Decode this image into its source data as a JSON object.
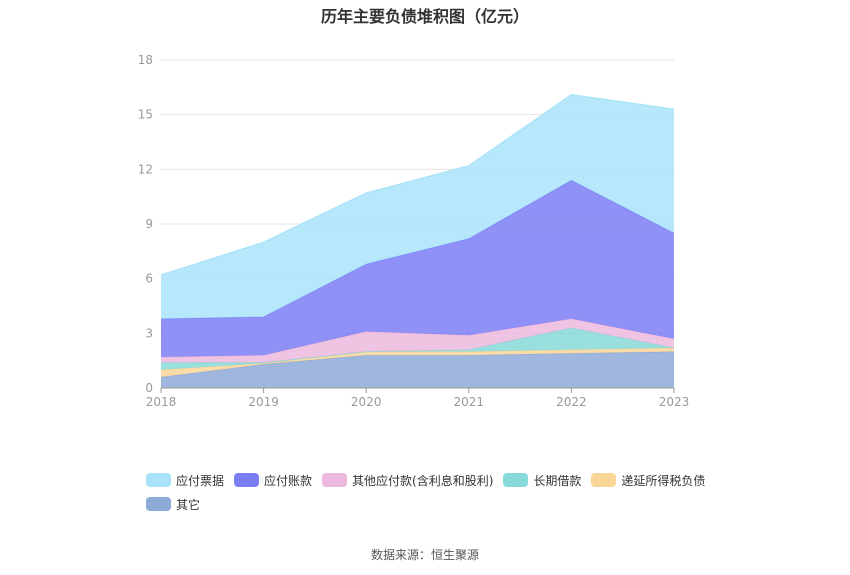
{
  "title": "历年主要负债堆积图（亿元）",
  "source": "数据来源：恒生聚源",
  "chart_data": {
    "type": "area",
    "stacked": true,
    "x": [
      "2018",
      "2019",
      "2020",
      "2021",
      "2022",
      "2023"
    ],
    "ylim": [
      0,
      18
    ],
    "yticks": [
      0,
      3,
      6,
      9,
      12,
      15,
      18
    ],
    "grid": true,
    "legend_position": "bottom",
    "series": [
      {
        "name": "其它",
        "color": "#8eaad8",
        "values": [
          0.6,
          1.3,
          1.8,
          1.8,
          1.9,
          2.0
        ]
      },
      {
        "name": "递延所得税负债",
        "color": "#fad699",
        "values": [
          0.4,
          0.05,
          0.2,
          0.2,
          0.2,
          0.2
        ]
      },
      {
        "name": "长期借款",
        "color": "#86d9d8",
        "values": [
          0.4,
          0.05,
          0.0,
          0.1,
          1.2,
          0.0
        ]
      },
      {
        "name": "其他应付款(含利息和股利)",
        "color": "#ecb8dd",
        "values": [
          0.3,
          0.4,
          1.1,
          0.8,
          0.5,
          0.5
        ]
      },
      {
        "name": "应付账款",
        "color": "#7b7ef5",
        "values": [
          2.1,
          2.1,
          3.7,
          5.3,
          7.6,
          5.8
        ]
      },
      {
        "name": "应付票据",
        "color": "#a9e3fa",
        "values": [
          2.4,
          4.1,
          3.9,
          4.0,
          4.7,
          6.8
        ]
      }
    ],
    "legend_order": [
      "应付票据",
      "应付账款",
      "其他应付款(含利息和股利)",
      "长期借款",
      "递延所得税负债",
      "其它"
    ]
  }
}
